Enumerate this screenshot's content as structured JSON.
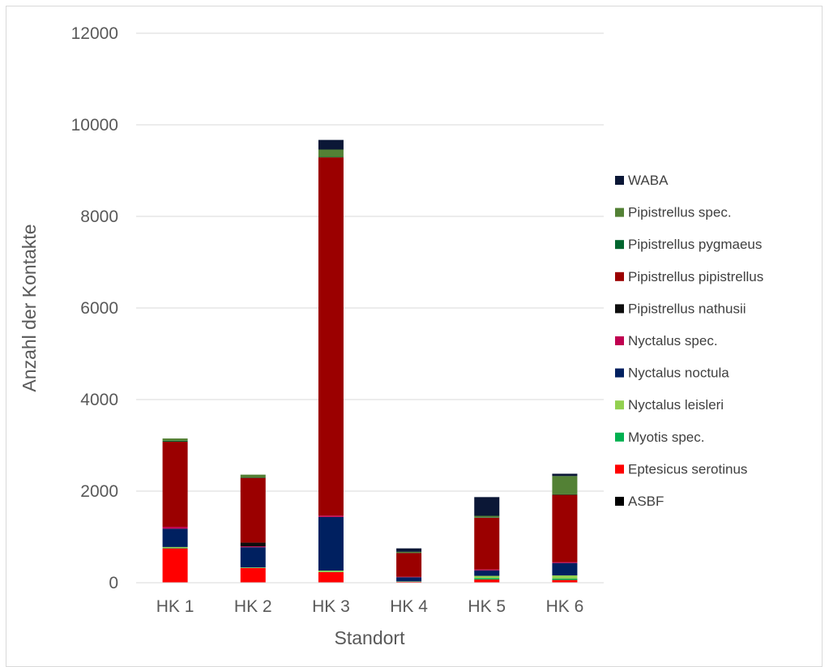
{
  "chart_data": {
    "type": "bar",
    "stacked": true,
    "title": "",
    "xlabel": "Standort",
    "ylabel": "Anzahl der Kontakte",
    "ylim": [
      0,
      12000
    ],
    "yticks": [
      0,
      2000,
      4000,
      6000,
      8000,
      10000,
      12000
    ],
    "grid": true,
    "legend_position": "right",
    "categories": [
      "HK 1",
      "HK 2",
      "HK 3",
      "HK 4",
      "HK 5",
      "HK 6"
    ],
    "series": [
      {
        "name": "ASBF",
        "color": "#000000",
        "values": [
          0,
          0,
          0,
          0,
          0,
          0
        ]
      },
      {
        "name": "Eptesicus serotinus",
        "color": "#ff0000",
        "values": [
          750,
          320,
          230,
          20,
          70,
          60
        ]
      },
      {
        "name": "Myotis spec.",
        "color": "#00b050",
        "values": [
          10,
          5,
          5,
          5,
          30,
          30
        ]
      },
      {
        "name": "Nyctalus leisleri",
        "color": "#92d050",
        "values": [
          20,
          10,
          30,
          5,
          50,
          70
        ]
      },
      {
        "name": "Nyctalus noctula",
        "color": "#002060",
        "values": [
          400,
          440,
          1170,
          90,
          120,
          270
        ]
      },
      {
        "name": "Nyctalus spec.",
        "color": "#c00050",
        "values": [
          40,
          20,
          30,
          10,
          20,
          20
        ]
      },
      {
        "name": "Pipistrellus nathusii",
        "color": "#0d0d0d",
        "values": [
          0,
          80,
          0,
          0,
          0,
          0
        ]
      },
      {
        "name": "Pipistrellus pipistrellus",
        "color": "#9b0000",
        "values": [
          1860,
          1415,
          7825,
          520,
          1130,
          1470
        ]
      },
      {
        "name": "Pipistrellus pygmaeus",
        "color": "#00652e",
        "values": [
          20,
          10,
          10,
          5,
          10,
          10
        ]
      },
      {
        "name": "Pipistrellus spec.",
        "color": "#538135",
        "values": [
          50,
          60,
          160,
          20,
          30,
          400
        ]
      },
      {
        "name": "WABA",
        "color": "#0b1736",
        "values": [
          0,
          0,
          210,
          75,
          410,
          50
        ]
      }
    ]
  }
}
